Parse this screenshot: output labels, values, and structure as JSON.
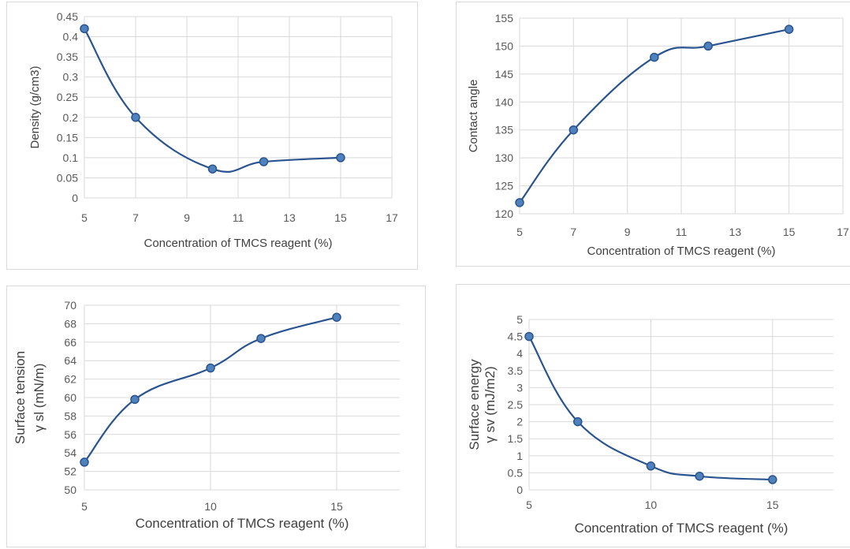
{
  "colors": {
    "line": "#2a5490",
    "marker_fill": "#4f81bd",
    "marker_stroke": "#2a5490",
    "grid": "#d9d9d9",
    "text": "#404040"
  },
  "chart_data": [
    {
      "type": "line",
      "xlabel": "Concentration of TMCS reagent (%)",
      "ylabel": "Density (g/cm3)",
      "xlim": [
        5,
        17
      ],
      "xticks": [
        5,
        7,
        9,
        11,
        13,
        15,
        17
      ],
      "ylim": [
        0,
        0.45
      ],
      "yticks": [
        "0",
        "0.05",
        "0.1",
        "0.15",
        "0.2",
        "0.25",
        "0.3",
        "0.35",
        "0.4",
        "0.45"
      ],
      "grid": true,
      "series": [
        {
          "x": [
            5,
            7,
            10,
            12,
            15
          ],
          "y": [
            0.42,
            0.2,
            0.072,
            0.09,
            0.1
          ]
        }
      ]
    },
    {
      "type": "line",
      "xlabel": "Concentration of TMCS reagent (%)",
      "ylabel": "Contact angle",
      "xlim": [
        5,
        17
      ],
      "xticks": [
        5,
        7,
        9,
        11,
        13,
        15,
        17
      ],
      "ylim": [
        120,
        155
      ],
      "yticks": [
        "120",
        "125",
        "130",
        "135",
        "140",
        "145",
        "150",
        "155"
      ],
      "grid": true,
      "series": [
        {
          "x": [
            5,
            7,
            10,
            12,
            15
          ],
          "y": [
            122,
            135,
            148,
            150,
            153
          ]
        }
      ]
    },
    {
      "type": "line",
      "xlabel": "Concentration of TMCS reagent (%)",
      "ylabel_lines": [
        "Surface tension",
        "γ sl (mN/m)"
      ],
      "xlim": [
        5,
        17.5
      ],
      "xticks": [
        5,
        10,
        15
      ],
      "ylim": [
        50,
        70
      ],
      "yticks": [
        "50",
        "52",
        "54",
        "56",
        "58",
        "60",
        "62",
        "64",
        "66",
        "68",
        "70"
      ],
      "grid": true,
      "series": [
        {
          "x": [
            5,
            7,
            10,
            12,
            15
          ],
          "y": [
            53,
            59.8,
            63.2,
            66.4,
            68.7
          ]
        }
      ]
    },
    {
      "type": "line",
      "xlabel": "Concentration of TMCS reagent (%)",
      "ylabel_lines": [
        "Surface energy",
        "γ sv (mJ/m2)"
      ],
      "xlim": [
        5,
        17.5
      ],
      "xticks": [
        5,
        10,
        15
      ],
      "ylim": [
        0,
        5
      ],
      "yticks": [
        "0",
        "0.5",
        "1",
        "1.5",
        "2",
        "2.5",
        "3",
        "3.5",
        "4",
        "4.5",
        "5"
      ],
      "grid": true,
      "series": [
        {
          "x": [
            5,
            7,
            10,
            12,
            15
          ],
          "y": [
            4.5,
            2.0,
            0.7,
            0.4,
            0.3
          ]
        }
      ]
    }
  ]
}
